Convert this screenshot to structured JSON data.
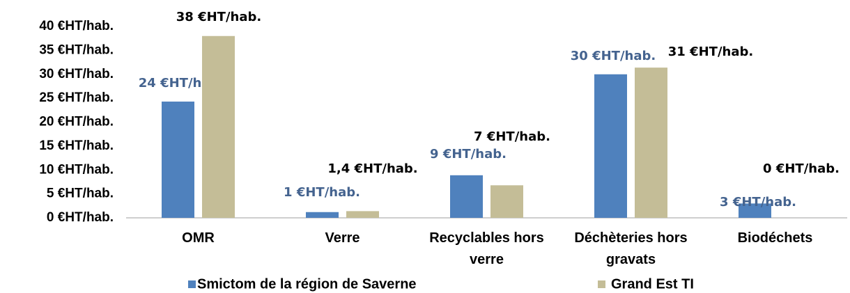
{
  "chart_data": {
    "type": "bar",
    "categories": [
      "OMR",
      "Verre",
      "Recyclables hors verre",
      "Déchèteries hors gravats",
      "Biodéchets"
    ],
    "series": [
      {
        "name": "Smictom de la région de Saverne",
        "color": "#4f81bd",
        "label_color": "#44638f",
        "values": [
          24.3,
          1.2,
          8.9,
          30,
          3
        ],
        "value_labels": [
          "24 €HT/hab.",
          "1 €HT/hab.",
          "9 €HT/hab.",
          "30 €HT/hab.",
          "3 €HT/hab."
        ]
      },
      {
        "name": "Grand Est TI",
        "color": "#c4bd97",
        "label_color": "#000000",
        "values": [
          38,
          1.4,
          6.8,
          31.4,
          0
        ],
        "value_labels": [
          "38 €HT/hab.",
          "1,4 €HT/hab.",
          "7 €HT/hab.",
          "31 €HT/hab.",
          "0 €HT/hab."
        ]
      }
    ],
    "ylim": [
      0,
      40
    ],
    "yticks": [
      {
        "value": 0,
        "label": "0 €HT/hab."
      },
      {
        "value": 5,
        "label": "5 €HT/hab."
      },
      {
        "value": 10,
        "label": "10 €HT/hab."
      },
      {
        "value": 15,
        "label": "15 €HT/hab."
      },
      {
        "value": 20,
        "label": "20 €HT/hab."
      },
      {
        "value": 25,
        "label": "25 €HT/hab."
      },
      {
        "value": 30,
        "label": "30 €HT/hab."
      },
      {
        "value": 35,
        "label": "35 €HT/hab."
      },
      {
        "value": 40,
        "label": "40 €HT/hab."
      }
    ],
    "grid": false,
    "legend": "bottom"
  }
}
